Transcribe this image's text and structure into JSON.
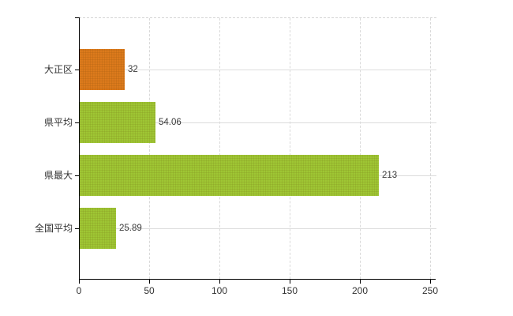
{
  "chart_data": {
    "type": "bar",
    "orientation": "horizontal",
    "title": "",
    "xlabel": "",
    "ylabel": "",
    "categories": [
      "大正区",
      "県平均",
      "県最大",
      "全国平均"
    ],
    "values": [
      32,
      54.06,
      213,
      25.89
    ],
    "value_labels": [
      "32",
      "54.06",
      "213",
      "25.89"
    ],
    "bar_colors": [
      "#e27d1d",
      "#a2cd36",
      "#a2cd36",
      "#a2cd36"
    ],
    "x_ticks": [
      "0",
      "50",
      "100",
      "150",
      "200",
      "250"
    ],
    "x_tick_values": [
      0,
      50,
      100,
      150,
      200,
      250
    ],
    "xlim": [
      0,
      250
    ],
    "grid": true,
    "legend": false
  },
  "colors": {
    "background": "#ffffff",
    "axis": "#000000",
    "gridline": "#d9d9d9",
    "top_border": "#d4d4d4",
    "text": "#333333",
    "bar_orange": "#e27d1d",
    "bar_green": "#a2cd36"
  }
}
